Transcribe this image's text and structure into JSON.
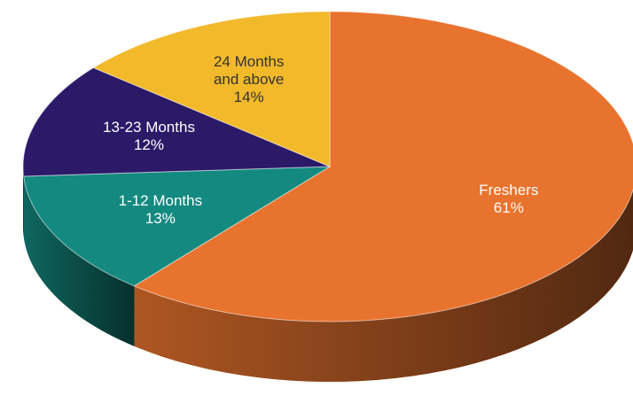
{
  "chart_data": {
    "type": "pie3d",
    "categories": [
      "Freshers",
      "1-12 Months",
      "13-23 Months",
      "24 Months and above"
    ],
    "values": [
      61,
      13,
      12,
      14
    ],
    "value_labels": [
      "61%",
      "13%",
      "12%",
      "14%"
    ],
    "colors": [
      "#e8732e",
      "#14897f",
      "#2c1a69",
      "#f2b92b"
    ]
  }
}
